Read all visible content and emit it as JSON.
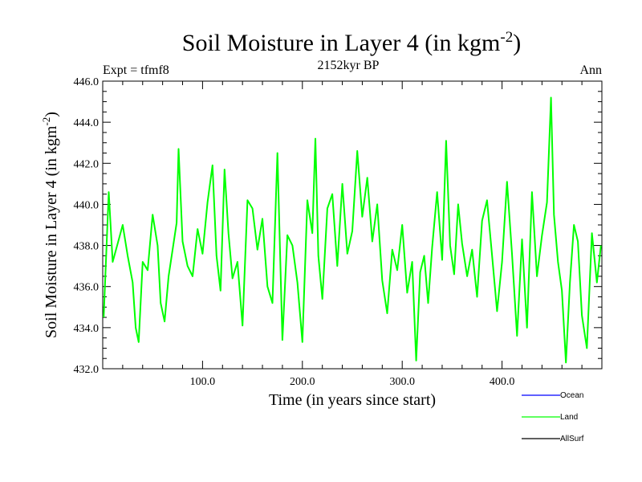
{
  "chart_data": {
    "type": "line",
    "title": "Soil Moisture in Layer 4 (in kgm",
    "title_sup": "-2",
    "title_tail": ")",
    "left_label": "Expt = tfmf8",
    "center_label": "2152kyr BP",
    "right_label": "Ann",
    "xlabel": "Time (in years since start)",
    "ylabel": "Soil Moisture in Layer 4 (in kgm",
    "ylabel_sup": "-2",
    "ylabel_tail": ")",
    "xlim": [
      0,
      500
    ],
    "ylim": [
      432,
      446
    ],
    "xticks": [
      100,
      200,
      300,
      400
    ],
    "xtick_labels": [
      "100.0",
      "200.0",
      "300.0",
      "400.0"
    ],
    "yticks": [
      432,
      434,
      436,
      438,
      440,
      442,
      444,
      446
    ],
    "ytick_labels": [
      "432.0",
      "434.0",
      "436.0",
      "438.0",
      "440.0",
      "442.0",
      "444.0",
      "446.0"
    ],
    "series": [
      {
        "name": "Ocean",
        "color": "#0000ff",
        "x": [],
        "y": []
      },
      {
        "name": "Land",
        "color": "#00ff00",
        "x": [
          1,
          6,
          10,
          15,
          20,
          25,
          30,
          33,
          36,
          40,
          45,
          50,
          55,
          58,
          62,
          66,
          70,
          74,
          76,
          80,
          85,
          90,
          95,
          100,
          105,
          110,
          114,
          118,
          122,
          126,
          130,
          135,
          140,
          145,
          150,
          155,
          160,
          165,
          170,
          175,
          180,
          185,
          190,
          195,
          200,
          205,
          210,
          213,
          216,
          220,
          225,
          230,
          235,
          240,
          245,
          250,
          255,
          260,
          265,
          270,
          275,
          280,
          285,
          290,
          295,
          300,
          305,
          310,
          314,
          318,
          322,
          326,
          330,
          335,
          340,
          344,
          348,
          352,
          356,
          360,
          365,
          370,
          375,
          380,
          385,
          390,
          395,
          400,
          405,
          410,
          415,
          420,
          425,
          430,
          435,
          440,
          445,
          449,
          452,
          456,
          460,
          464,
          468,
          472,
          476,
          480,
          485,
          490,
          495,
          499
        ],
        "y": [
          434.5,
          440.6,
          437.2,
          438.1,
          439.0,
          437.5,
          436.2,
          434.0,
          433.3,
          437.2,
          436.8,
          439.5,
          438.0,
          435.2,
          434.3,
          436.5,
          437.8,
          439.1,
          442.7,
          438.2,
          437.0,
          436.5,
          438.8,
          437.6,
          440.1,
          441.9,
          437.5,
          435.8,
          441.7,
          438.6,
          436.4,
          437.2,
          434.1,
          440.2,
          439.8,
          437.8,
          439.3,
          436.0,
          435.2,
          442.5,
          433.4,
          438.5,
          438.0,
          436.2,
          433.3,
          440.2,
          438.6,
          443.2,
          437.5,
          435.4,
          439.8,
          440.5,
          437.0,
          441.0,
          437.6,
          438.7,
          442.6,
          439.4,
          441.3,
          438.2,
          440.0,
          436.3,
          434.7,
          437.8,
          436.8,
          439.0,
          435.7,
          437.2,
          432.4,
          436.7,
          437.5,
          435.2,
          437.9,
          440.6,
          437.3,
          443.1,
          438.0,
          436.6,
          440.0,
          438.1,
          436.5,
          437.8,
          435.5,
          439.2,
          440.2,
          437.5,
          434.8,
          437.2,
          441.1,
          437.6,
          433.6,
          438.3,
          434.0,
          440.6,
          436.5,
          438.5,
          440.1,
          445.2,
          439.5,
          437.2,
          435.8,
          432.3,
          436.2,
          439.0,
          438.2,
          434.6,
          433.0,
          438.6,
          436.2,
          438.0
        ]
      },
      {
        "name": "AllSurf",
        "color": "#000000",
        "x": [],
        "y": []
      }
    ]
  }
}
